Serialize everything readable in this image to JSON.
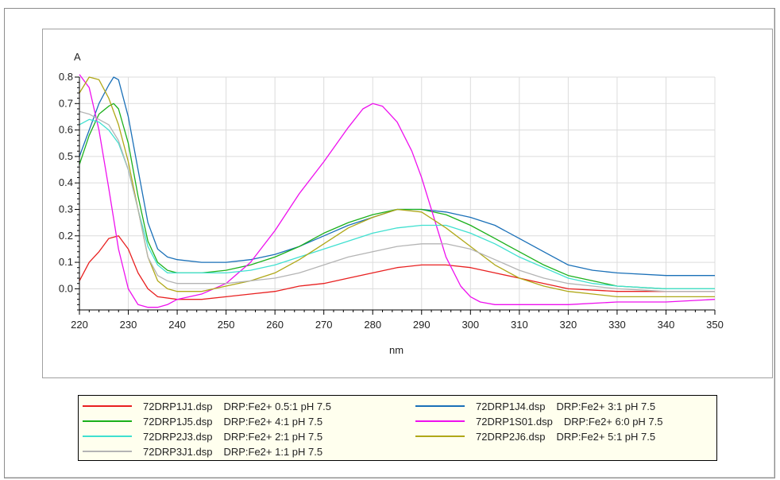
{
  "chart_data": {
    "type": "line",
    "ylabel": "A",
    "xlabel": "nm",
    "xlim": [
      220,
      350
    ],
    "ylim": [
      -0.08,
      0.8
    ],
    "xticks": [
      "220",
      "230",
      "240",
      "250",
      "260",
      "270",
      "280",
      "290",
      "300",
      "310",
      "320",
      "330",
      "340",
      "350"
    ],
    "yticks": [
      "0.8",
      "0.7",
      "0.6",
      "0.5",
      "0.4",
      "0.3",
      "0.2",
      "0.1",
      "0.0"
    ],
    "grid": true,
    "legend_position": "bottom",
    "series": [
      {
        "file": "72DRP1J1.dsp",
        "desc": "DRP:Fe2+ 0.5:1 pH 7.5",
        "color": "#e82020",
        "x": [
          220,
          222,
          224,
          226,
          228,
          230,
          232,
          234,
          236,
          240,
          245,
          250,
          255,
          260,
          265,
          270,
          275,
          280,
          285,
          290,
          295,
          300,
          305,
          310,
          315,
          320,
          330,
          340,
          350
        ],
        "y": [
          0.03,
          0.1,
          0.14,
          0.19,
          0.2,
          0.15,
          0.06,
          0.0,
          -0.03,
          -0.04,
          -0.04,
          -0.03,
          -0.02,
          -0.01,
          0.01,
          0.02,
          0.04,
          0.06,
          0.08,
          0.09,
          0.09,
          0.08,
          0.06,
          0.04,
          0.02,
          0.0,
          -0.01,
          -0.01,
          -0.01
        ]
      },
      {
        "file": "72DRP1J4.dsp",
        "desc": "DRP:Fe2+ 3:1 pH 7.5",
        "color": "#1a70b8",
        "x": [
          220,
          222,
          224,
          226,
          227,
          228,
          230,
          232,
          234,
          236,
          238,
          240,
          245,
          250,
          255,
          260,
          265,
          270,
          275,
          280,
          285,
          290,
          295,
          300,
          305,
          310,
          315,
          320,
          325,
          330,
          340,
          350
        ],
        "y": [
          0.5,
          0.6,
          0.7,
          0.77,
          0.8,
          0.79,
          0.65,
          0.45,
          0.25,
          0.15,
          0.12,
          0.11,
          0.1,
          0.1,
          0.11,
          0.13,
          0.16,
          0.2,
          0.24,
          0.27,
          0.3,
          0.3,
          0.29,
          0.27,
          0.24,
          0.19,
          0.14,
          0.09,
          0.07,
          0.06,
          0.05,
          0.05
        ]
      },
      {
        "file": "72DRP1J5.dsp",
        "desc": "DRP:Fe2+ 4:1 pH 7.5",
        "color": "#1bb01b",
        "x": [
          220,
          222,
          224,
          226,
          227,
          228,
          230,
          232,
          234,
          236,
          238,
          240,
          245,
          250,
          255,
          260,
          265,
          270,
          275,
          280,
          285,
          290,
          295,
          300,
          305,
          310,
          315,
          320,
          325,
          330,
          340,
          350
        ],
        "y": [
          0.47,
          0.58,
          0.66,
          0.69,
          0.7,
          0.68,
          0.55,
          0.35,
          0.18,
          0.1,
          0.07,
          0.06,
          0.06,
          0.07,
          0.09,
          0.12,
          0.16,
          0.21,
          0.25,
          0.28,
          0.3,
          0.3,
          0.28,
          0.24,
          0.19,
          0.14,
          0.09,
          0.05,
          0.03,
          0.01,
          0.0,
          0.0
        ]
      },
      {
        "file": "72DRP1S01.dsp",
        "desc": "DRP:Fe2+ 6:0 pH 7.5",
        "color": "#ee10ee",
        "x": [
          220,
          222,
          224,
          226,
          228,
          230,
          232,
          234,
          236,
          238,
          240,
          245,
          250,
          255,
          260,
          265,
          270,
          275,
          278,
          280,
          282,
          285,
          288,
          290,
          292,
          295,
          298,
          300,
          302,
          305,
          310,
          320,
          330,
          340,
          350
        ],
        "y": [
          0.81,
          0.76,
          0.6,
          0.38,
          0.15,
          0.0,
          -0.06,
          -0.07,
          -0.07,
          -0.06,
          -0.04,
          -0.02,
          0.02,
          0.1,
          0.22,
          0.36,
          0.48,
          0.61,
          0.68,
          0.7,
          0.69,
          0.63,
          0.52,
          0.42,
          0.3,
          0.12,
          0.01,
          -0.03,
          -0.05,
          -0.06,
          -0.06,
          -0.06,
          -0.05,
          -0.05,
          -0.04
        ]
      },
      {
        "file": "72DRP2J3.dsp",
        "desc": "DRP:Fe2+ 2:1 pH 7.5",
        "color": "#40e0d0",
        "x": [
          220,
          222,
          224,
          226,
          228,
          230,
          232,
          234,
          236,
          238,
          240,
          245,
          250,
          255,
          260,
          265,
          270,
          275,
          280,
          285,
          290,
          295,
          300,
          305,
          310,
          315,
          320,
          325,
          330,
          340,
          350
        ],
        "y": [
          0.62,
          0.64,
          0.63,
          0.6,
          0.55,
          0.45,
          0.3,
          0.16,
          0.09,
          0.06,
          0.06,
          0.06,
          0.06,
          0.07,
          0.09,
          0.12,
          0.15,
          0.18,
          0.21,
          0.23,
          0.24,
          0.24,
          0.21,
          0.17,
          0.12,
          0.08,
          0.04,
          0.02,
          0.01,
          0.0,
          0.0
        ]
      },
      {
        "file": "72DRP2J6.dsp",
        "desc": "DRP:Fe2+ 5:1 pH 7.5",
        "color": "#b0a818",
        "x": [
          220,
          222,
          224,
          226,
          228,
          230,
          232,
          234,
          236,
          238,
          240,
          245,
          250,
          255,
          260,
          265,
          270,
          275,
          280,
          285,
          290,
          295,
          300,
          305,
          310,
          315,
          320,
          325,
          330,
          340,
          350
        ],
        "y": [
          0.74,
          0.8,
          0.79,
          0.72,
          0.62,
          0.48,
          0.3,
          0.12,
          0.03,
          0.0,
          -0.01,
          -0.01,
          0.01,
          0.03,
          0.06,
          0.11,
          0.17,
          0.23,
          0.27,
          0.3,
          0.29,
          0.23,
          0.16,
          0.09,
          0.04,
          0.01,
          -0.01,
          -0.02,
          -0.03,
          -0.03,
          -0.03
        ]
      },
      {
        "file": "72DRP3J1.dsp",
        "desc": "DRP:Fe2+ 1:1 pH 7.5",
        "color": "#b4b4b4",
        "x": [
          220,
          222,
          224,
          226,
          228,
          230,
          232,
          234,
          236,
          238,
          240,
          245,
          250,
          255,
          260,
          265,
          270,
          275,
          280,
          285,
          290,
          295,
          300,
          305,
          310,
          315,
          320,
          325,
          330,
          340,
          350
        ],
        "y": [
          0.67,
          0.66,
          0.64,
          0.62,
          0.56,
          0.45,
          0.3,
          0.12,
          0.05,
          0.03,
          0.02,
          0.02,
          0.02,
          0.03,
          0.04,
          0.06,
          0.09,
          0.12,
          0.14,
          0.16,
          0.17,
          0.17,
          0.15,
          0.11,
          0.07,
          0.04,
          0.02,
          0.01,
          0.0,
          -0.01,
          -0.01
        ]
      }
    ]
  },
  "legend": {
    "items": [
      {
        "file": "72DRP1J1.dsp",
        "desc": "DRP:Fe2+ 0.5:1 pH 7.5",
        "color": "#e82020"
      },
      {
        "file": "72DRP1J4.dsp",
        "desc": "DRP:Fe2+ 3:1 pH 7.5",
        "color": "#1a70b8"
      },
      {
        "file": "72DRP1J5.dsp",
        "desc": "DRP:Fe2+ 4:1 pH 7.5",
        "color": "#1bb01b"
      },
      {
        "file": "72DRP1S01.dsp",
        "desc": "DRP:Fe2+ 6:0 pH 7.5",
        "color": "#ee10ee"
      },
      {
        "file": "72DRP2J3.dsp",
        "desc": "DRP:Fe2+ 2:1 pH 7.5",
        "color": "#40e0d0"
      },
      {
        "file": "72DRP2J6.dsp",
        "desc": "DRP:Fe2+ 5:1 pH 7.5",
        "color": "#b0a818"
      },
      {
        "file": "72DRP3J1.dsp",
        "desc": "DRP:Fe2+ 1:1 pH 7.5",
        "color": "#b4b4b4"
      }
    ]
  }
}
